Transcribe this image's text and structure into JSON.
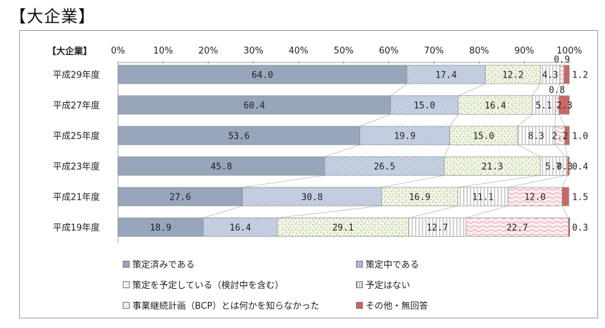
{
  "page": {
    "title": "【大企業】"
  },
  "chart_data": {
    "type": "bar",
    "orientation": "horizontal",
    "stacked": "percent",
    "title": "",
    "corner_label": "【大企業】",
    "xlim": [
      0,
      100
    ],
    "x_ticks": [
      "0%",
      "10%",
      "20%",
      "30%",
      "40%",
      "50%",
      "60%",
      "70%",
      "80%",
      "90%",
      "100%"
    ],
    "categories": [
      "平成29年度",
      "平成27年度",
      "平成25年度",
      "平成23年度",
      "平成21年度",
      "平成19年度"
    ],
    "series": [
      {
        "name": "策定済みである",
        "values": [
          64.0,
          60.4,
          53.6,
          45.8,
          27.6,
          18.9
        ],
        "color": "#97a6ba",
        "pattern": "solid"
      },
      {
        "name": "策定中である",
        "values": [
          17.4,
          15.0,
          19.9,
          26.5,
          30.8,
          16.4
        ],
        "color": "#c9d4e6",
        "pattern": "dots"
      },
      {
        "name": "策定を予定している（検討中を含む）",
        "values": [
          12.2,
          16.4,
          15.0,
          21.3,
          16.9,
          29.1
        ],
        "color": "#eef3df",
        "pattern": "confetti"
      },
      {
        "name": "予定はない",
        "values": [
          4.3,
          5.1,
          8.3,
          5.7,
          11.1,
          12.7
        ],
        "color": "#ffffff",
        "pattern": "vlines"
      },
      {
        "name": "事業継続計画（BCP）とは何かを知らなかった",
        "values": [
          0.9,
          0.8,
          2.2,
          0.3,
          12.0,
          22.7
        ],
        "color": "#fbe7ea",
        "pattern": "waves"
      },
      {
        "name": "その他・無回答",
        "values": [
          1.2,
          2.3,
          1.0,
          0.4,
          1.5,
          0.3
        ],
        "color": "#c56a66",
        "pattern": "solid"
      }
    ],
    "data_labels": [
      [
        "64.0",
        "17.4",
        "12.2",
        "4.3",
        "0.9",
        "1.2"
      ],
      [
        "60.4",
        "15.0",
        "16.4",
        "5.1",
        "0.8",
        "2.3"
      ],
      [
        "53.6",
        "19.9",
        "15.0",
        "8.3",
        "2.2",
        "1.0"
      ],
      [
        "45.8",
        "26.5",
        "21.3",
        "5.7",
        "0.3",
        "0.4"
      ],
      [
        "27.6",
        "30.8",
        "16.9",
        "11.1",
        "12.0",
        "1.5"
      ],
      [
        "18.9",
        "16.4",
        "29.1",
        "12.7",
        "22.7",
        "0.3"
      ]
    ],
    "label_overrides": {
      "0-4": "above",
      "1-4": "above",
      "0-5": "outside",
      "1-5": "inside",
      "2-5": "outside",
      "3-4": "combined-0.3",
      "3-5": "outside",
      "4-5": "outside",
      "5-5": "outside"
    },
    "series_connector_lines": true,
    "legend": {
      "placement": "bottom",
      "rows": [
        [
          "策定済みである",
          "策定中である"
        ],
        [
          "策定を予定している（検討中を含む）",
          "予定はない"
        ],
        [
          "事業継続計画（BCP）とは何かを知らなかった",
          "その他・無回答"
        ]
      ]
    }
  }
}
